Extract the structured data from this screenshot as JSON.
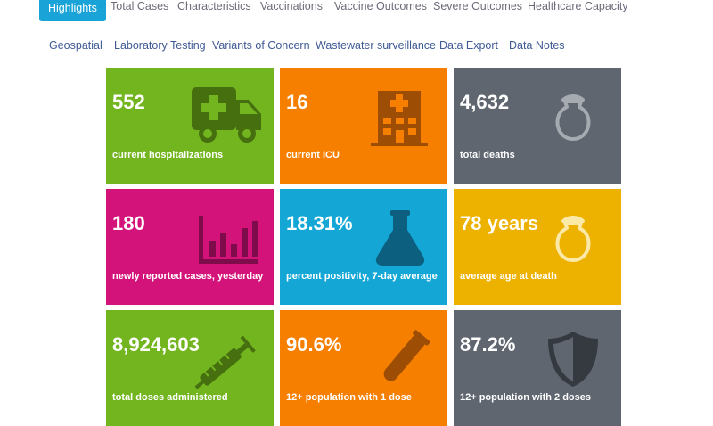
{
  "nav": {
    "row1": [
      "Highlights",
      "Total Cases",
      "Characteristics",
      "Vaccinations",
      "Vaccine Outcomes",
      "Severe Outcomes",
      "Healthcare Capacity"
    ],
    "row2": [
      "Geospatial",
      "Laboratory Testing",
      "Variants of Concern",
      "Wastewater surveillance",
      "Data Export",
      "Data Notes"
    ],
    "active_tab": "Highlights"
  },
  "tiles": [
    {
      "value": "552",
      "label": "current hospitalizations",
      "color": "#72b51f",
      "icon": "ambulance-icon"
    },
    {
      "value": "16",
      "label": "current ICU",
      "color": "#f77f00",
      "icon": "hospital-icon"
    },
    {
      "value": "4,632",
      "label": "total deaths",
      "color": "#5f6670",
      "icon": "urn-icon"
    },
    {
      "value": "180",
      "label": "newly reported cases, yesterday",
      "color": "#d4137a",
      "icon": "bar-chart-icon"
    },
    {
      "value": "18.31%",
      "label": "percent positivity, 7-day average",
      "color": "#14a7d6",
      "icon": "flask-icon"
    },
    {
      "value": "78 years",
      "label": "average age at death",
      "color": "#edb200",
      "icon": "urn-icon"
    },
    {
      "value": "8,924,603",
      "label": "total doses administered",
      "color": "#72b51f",
      "icon": "syringe-icon"
    },
    {
      "value": "90.6%",
      "label": "12+ population with 1 dose",
      "color": "#f77f00",
      "icon": "test-tube-icon"
    },
    {
      "value": "87.2%",
      "label": "12+ population with 2 doses",
      "color": "#5f6670",
      "icon": "shield-icon"
    }
  ],
  "icon_colors": {
    "ambulance-icon": "#46700f",
    "hospital-icon": "#9e4d05",
    "urn-icon-grey": "#a6abb1",
    "bar-chart-icon": "#7e0c4a",
    "flask-icon": "#0c5f7e",
    "urn-icon-yellow": "#fbe9a8",
    "syringe-icon": "#46700f",
    "test-tube-icon": "#9e4d05",
    "shield-icon": "#343a40"
  }
}
